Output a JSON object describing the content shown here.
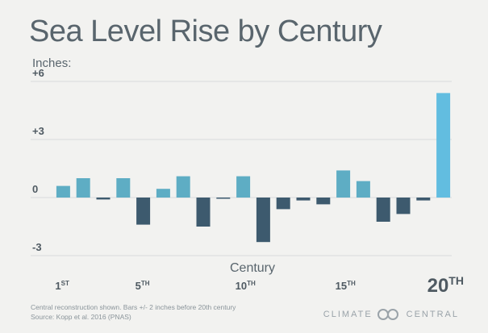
{
  "chart_data": {
    "type": "bar",
    "title": "Sea Level Rise by Century",
    "unit_label": "Inches:",
    "xlabel": "Century",
    "ylim": [
      -3,
      6
    ],
    "yticks": [
      {
        "value": 6,
        "label": "+6"
      },
      {
        "value": 3,
        "label": "+3"
      },
      {
        "value": 0,
        "label": "0"
      },
      {
        "value": -3,
        "label": "-3"
      }
    ],
    "categories": [
      "1",
      "2",
      "3",
      "4",
      "5",
      "6",
      "7",
      "8",
      "9",
      "10",
      "11",
      "12",
      "13",
      "14",
      "15",
      "16",
      "17",
      "18",
      "19",
      "20"
    ],
    "values": [
      0.6,
      1.0,
      -0.1,
      1.0,
      -1.4,
      0.45,
      1.1,
      -1.5,
      -0.05,
      1.1,
      -2.3,
      -0.6,
      -0.15,
      -0.35,
      1.4,
      0.85,
      -1.25,
      -0.85,
      -0.15,
      5.4
    ],
    "colors": {
      "positive": "#5eadc4",
      "negative": "#3d5a6e",
      "highlight": "#62bde0"
    },
    "x_tick_labels": [
      {
        "index": 0,
        "num": "1",
        "sup": "ST"
      },
      {
        "index": 4,
        "num": "5",
        "sup": "TH"
      },
      {
        "index": 9,
        "num": "10",
        "sup": "TH"
      },
      {
        "index": 14,
        "num": "15",
        "sup": "TH"
      },
      {
        "index": 19,
        "num": "20",
        "sup": "TH",
        "emphasis": true
      }
    ],
    "footnotes": [
      "Central reconstruction shown. Bars +/- 2 inches before 20th century",
      "Source: Kopp et al. 2016 (PNAS)"
    ],
    "brand": "CLIMATE CENTRAL"
  }
}
